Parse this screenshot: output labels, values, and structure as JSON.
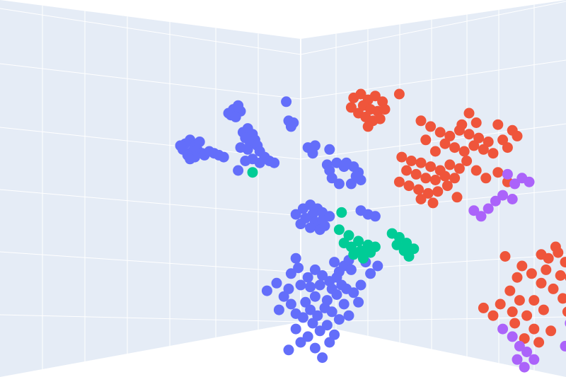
{
  "chart_data": {
    "type": "scatter",
    "dimensions": "3d",
    "grid": true,
    "legend": "none",
    "wall_color": "#e5ecf6",
    "grid_color": "#ffffff",
    "series": [
      {
        "color": "#636efa",
        "points": [
          [
            -4.6,
            2.6
          ],
          [
            -4.4,
            2.3
          ],
          [
            -4.8,
            2.4
          ],
          [
            -4.2,
            2.5
          ],
          [
            -4.5,
            2.0
          ],
          [
            -4.9,
            2.1
          ],
          [
            -4.3,
            2.1
          ],
          [
            -4.7,
            1.8
          ],
          [
            -4.1,
            1.9
          ],
          [
            -4.4,
            1.7
          ],
          [
            -5.0,
            2.3
          ],
          [
            -4.6,
            1.6
          ],
          [
            -4.0,
            1.8
          ],
          [
            -3.8,
            2.0
          ],
          [
            -3.6,
            1.9
          ],
          [
            -3.4,
            1.8
          ],
          [
            -3.2,
            1.7
          ],
          [
            -3.0,
            4.0
          ],
          [
            -2.8,
            4.2
          ],
          [
            -2.6,
            4.4
          ],
          [
            -2.9,
            3.9
          ],
          [
            -2.5,
            4.1
          ],
          [
            -2.7,
            3.8
          ],
          [
            -2.4,
            3.0
          ],
          [
            -2.2,
            3.2
          ],
          [
            -2.0,
            2.9
          ],
          [
            -2.3,
            2.7
          ],
          [
            -1.9,
            2.6
          ],
          [
            -2.1,
            2.4
          ],
          [
            -1.8,
            2.3
          ],
          [
            -2.2,
            2.1
          ],
          [
            -1.7,
            2.0
          ],
          [
            -2.5,
            2.2
          ],
          [
            -2.0,
            1.6
          ],
          [
            -1.7,
            1.4
          ],
          [
            -1.5,
            1.7
          ],
          [
            -1.3,
            1.5
          ],
          [
            -1.1,
            1.4
          ],
          [
            -2.3,
            1.5
          ],
          [
            -2.6,
            1.0
          ],
          [
            -0.6,
            4.6
          ],
          [
            -0.5,
            3.6
          ],
          [
            -0.3,
            3.5
          ],
          [
            -0.4,
            3.3
          ],
          [
            0.3,
            2.2
          ],
          [
            0.6,
            2.3
          ],
          [
            0.5,
            1.9
          ],
          [
            1.2,
            2.1
          ],
          [
            1.1,
            1.3
          ],
          [
            1.5,
            1.4
          ],
          [
            1.9,
            1.4
          ],
          [
            2.2,
            1.2
          ],
          [
            2.4,
            0.9
          ],
          [
            2.5,
            0.5
          ],
          [
            2.1,
            0.3
          ],
          [
            1.6,
            0.3
          ],
          [
            1.3,
            0.6
          ],
          [
            1.2,
            1.0
          ],
          [
            2.3,
            0.7
          ],
          [
            1.8,
            1.2
          ],
          [
            0.1,
            -1.0
          ],
          [
            0.4,
            -0.8
          ],
          [
            0.7,
            -1.0
          ],
          [
            0.9,
            -1.2
          ],
          [
            0.5,
            -1.3
          ],
          [
            0.2,
            -1.5
          ],
          [
            0.6,
            -1.7
          ],
          [
            0.9,
            -1.6
          ],
          [
            1.2,
            -1.4
          ],
          [
            0.0,
            -1.8
          ],
          [
            0.4,
            -2.0
          ],
          [
            0.8,
            -2.1
          ],
          [
            1.0,
            -1.9
          ],
          [
            -0.2,
            -1.3
          ],
          [
            2.5,
            -1.1
          ],
          [
            2.8,
            -1.3
          ],
          [
            3.1,
            -1.4
          ],
          [
            -0.2,
            -3.6
          ],
          [
            -0.1,
            -4.1
          ],
          [
            -0.4,
            -4.4
          ],
          [
            0.3,
            -4.6
          ],
          [
            0.6,
            -4.2
          ],
          [
            0.9,
            -4.5
          ],
          [
            1.2,
            -4.8
          ],
          [
            0.8,
            -5.0
          ],
          [
            0.4,
            -5.1
          ],
          [
            0.0,
            -5.0
          ],
          [
            -0.5,
            -5.2
          ],
          [
            1.5,
            -4.6
          ],
          [
            1.4,
            -3.8
          ],
          [
            1.8,
            -4.0
          ],
          [
            1.6,
            -4.3
          ],
          [
            2.0,
            -3.7
          ],
          [
            2.1,
            -4.2
          ],
          [
            1.3,
            -5.2
          ],
          [
            1.7,
            -5.0
          ],
          [
            0.6,
            -5.6
          ],
          [
            1.1,
            -5.8
          ],
          [
            0.2,
            -5.9
          ],
          [
            1.9,
            -5.2
          ],
          [
            2.2,
            -5.4
          ],
          [
            1.5,
            -5.5
          ],
          [
            1.0,
            -6.2
          ],
          [
            0.4,
            -6.3
          ],
          [
            0.7,
            -6.6
          ],
          [
            1.3,
            -6.4
          ],
          [
            1.8,
            -6.0
          ],
          [
            0.1,
            -6.7
          ],
          [
            0.5,
            -7.0
          ],
          [
            1.6,
            -6.8
          ],
          [
            1.1,
            -7.1
          ],
          [
            0.8,
            -7.4
          ],
          [
            0.3,
            -7.7
          ],
          [
            -0.2,
            -7.3
          ],
          [
            1.4,
            -7.6
          ],
          [
            2.0,
            -6.6
          ],
          [
            2.4,
            -5.9
          ],
          [
            2.5,
            -5.0
          ],
          [
            2.9,
            -4.4
          ],
          [
            3.2,
            -4.0
          ],
          [
            2.7,
            -3.8
          ],
          [
            -1.0,
            -4.9
          ],
          [
            -0.7,
            -5.6
          ],
          [
            -0.4,
            -6.0
          ],
          [
            -0.9,
            -6.3
          ],
          [
            -0.2,
            -6.5
          ],
          [
            0.0,
            -8.0
          ],
          [
            0.6,
            -8.3
          ],
          [
            1.2,
            -8.0
          ],
          [
            -0.5,
            -8.4
          ],
          [
            0.9,
            -8.8
          ],
          [
            -1.4,
            -5.3
          ]
        ]
      },
      {
        "color": "#ef553b",
        "points": [
          [
            2.2,
            4.8
          ],
          [
            2.5,
            5.0
          ],
          [
            2.8,
            4.7
          ],
          [
            3.1,
            4.9
          ],
          [
            3.4,
            4.6
          ],
          [
            2.6,
            4.4
          ],
          [
            2.9,
            4.2
          ],
          [
            3.2,
            4.1
          ],
          [
            2.4,
            4.0
          ],
          [
            2.7,
            3.8
          ],
          [
            3.0,
            3.6
          ],
          [
            3.3,
            3.7
          ],
          [
            2.1,
            4.3
          ],
          [
            3.5,
            4.2
          ],
          [
            2.8,
            3.3
          ],
          [
            4.1,
            5.0
          ],
          [
            5.0,
            3.6
          ],
          [
            5.4,
            3.3
          ],
          [
            5.8,
            3.0
          ],
          [
            6.2,
            2.8
          ],
          [
            6.6,
            3.1
          ],
          [
            7.0,
            2.9
          ],
          [
            7.4,
            2.7
          ],
          [
            7.8,
            2.5
          ],
          [
            6.0,
            2.4
          ],
          [
            6.4,
            2.2
          ],
          [
            6.8,
            2.0
          ],
          [
            7.2,
            2.3
          ],
          [
            7.6,
            2.1
          ],
          [
            8.0,
            1.9
          ],
          [
            8.4,
            2.6
          ],
          [
            8.8,
            3.1
          ],
          [
            8.2,
            3.4
          ],
          [
            7.3,
            3.5
          ],
          [
            6.7,
            3.4
          ],
          [
            5.6,
            2.0
          ],
          [
            5.2,
            2.6
          ],
          [
            8.6,
            2.2
          ],
          [
            9.0,
            2.8
          ],
          [
            7.0,
            4.0
          ],
          [
            4.2,
            1.7
          ],
          [
            4.6,
            1.5
          ],
          [
            5.0,
            1.4
          ],
          [
            5.4,
            1.2
          ],
          [
            5.8,
            1.0
          ],
          [
            6.2,
            1.3
          ],
          [
            6.6,
            1.1
          ],
          [
            4.4,
            1.0
          ],
          [
            4.8,
            0.8
          ],
          [
            5.2,
            0.6
          ],
          [
            5.6,
            0.5
          ],
          [
            6.0,
            0.7
          ],
          [
            4.1,
            0.4
          ],
          [
            4.5,
            0.2
          ],
          [
            4.9,
            0.0
          ],
          [
            5.3,
            -0.2
          ],
          [
            5.7,
            -0.1
          ],
          [
            6.1,
            0.2
          ],
          [
            5.0,
            -0.5
          ],
          [
            5.5,
            -0.7
          ],
          [
            6.4,
            0.6
          ],
          [
            6.9,
            1.5
          ],
          [
            7.3,
            1.0
          ],
          [
            7.7,
            0.6
          ],
          [
            8.2,
            0.9
          ],
          [
            8.6,
            0.4
          ],
          [
            6.5,
            -0.4
          ],
          [
            8.5,
            -3.5
          ],
          [
            9.2,
            -4.0
          ],
          [
            9.0,
            -4.6
          ],
          [
            8.7,
            -5.3
          ],
          [
            8.3,
            -6.0
          ],
          [
            8.0,
            -6.6
          ],
          [
            7.6,
            -6.2
          ],
          [
            8.9,
            -7.0
          ],
          [
            9.4,
            -6.6
          ],
          [
            9.7,
            -5.8
          ],
          [
            10.0,
            -4.9
          ],
          [
            10.2,
            -4.2
          ],
          [
            10.5,
            -5.2
          ],
          [
            10.8,
            -4.5
          ],
          [
            10.3,
            -3.6
          ],
          [
            10.6,
            -3.0
          ],
          [
            11.0,
            -3.8
          ],
          [
            11.2,
            -4.6
          ],
          [
            10.9,
            -5.7
          ],
          [
            10.1,
            -6.3
          ],
          [
            9.7,
            -7.3
          ],
          [
            9.3,
            -7.8
          ],
          [
            9.9,
            -8.0
          ],
          [
            10.4,
            -7.4
          ],
          [
            11.1,
            -6.4
          ],
          [
            11.4,
            -5.3
          ],
          [
            10.7,
            -3.3
          ],
          [
            9.1,
            -5.8
          ],
          [
            8.8,
            -6.4
          ],
          [
            9.6,
            -4.4
          ],
          [
            10.0,
            -3.4
          ]
        ]
      },
      {
        "color": "#00cc96",
        "points": [
          [
            -2.0,
            0.9
          ],
          [
            1.6,
            -2.1
          ],
          [
            2.0,
            -2.4
          ],
          [
            2.4,
            -2.7
          ],
          [
            2.1,
            -3.0
          ],
          [
            2.5,
            -3.2
          ],
          [
            2.8,
            -2.9
          ],
          [
            1.8,
            -2.8
          ],
          [
            2.2,
            -3.4
          ],
          [
            2.6,
            -3.6
          ],
          [
            2.9,
            -3.3
          ],
          [
            3.1,
            -3.0
          ],
          [
            3.8,
            -2.3
          ],
          [
            4.1,
            -2.5
          ],
          [
            4.0,
            -2.9
          ],
          [
            4.4,
            -2.8
          ],
          [
            4.3,
            -3.2
          ],
          [
            4.7,
            -3.1
          ],
          [
            4.5,
            -3.5
          ],
          [
            1.7,
            -1.2
          ]
        ]
      },
      {
        "color": "#ab63fa",
        "points": [
          [
            8.6,
            0.8
          ],
          [
            8.9,
            0.3
          ],
          [
            9.2,
            0.6
          ],
          [
            9.5,
            0.4
          ],
          [
            8.4,
            -0.3
          ],
          [
            8.1,
            -0.6
          ],
          [
            7.8,
            -1.0
          ],
          [
            7.5,
            -1.4
          ],
          [
            7.2,
            -1.1
          ],
          [
            8.8,
            -0.5
          ],
          [
            8.4,
            -7.3
          ],
          [
            8.8,
            -7.7
          ],
          [
            9.1,
            -8.2
          ],
          [
            9.4,
            -8.5
          ],
          [
            9.7,
            -8.9
          ],
          [
            9.3,
            -9.3
          ],
          [
            9.0,
            -8.9
          ],
          [
            11.5,
            -6.6
          ],
          [
            11.2,
            -7.0
          ],
          [
            11.0,
            -8.2
          ]
        ]
      }
    ]
  }
}
